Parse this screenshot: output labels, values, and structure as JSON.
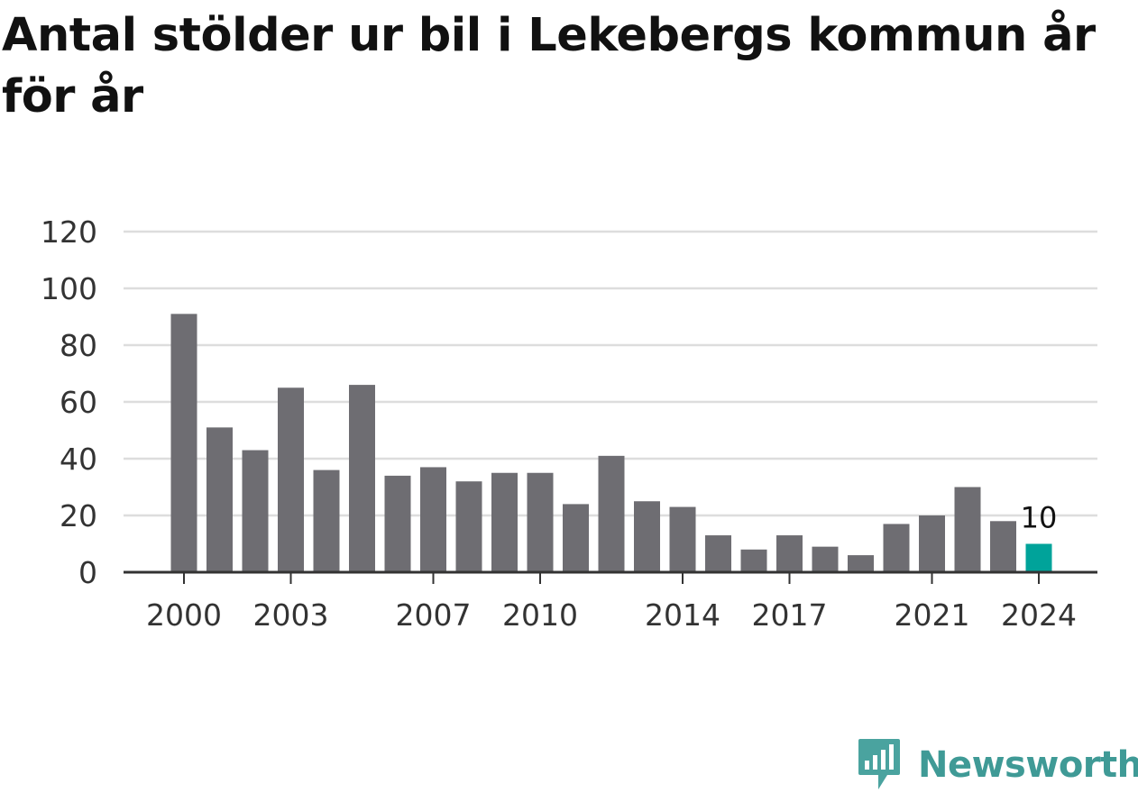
{
  "chart_data": {
    "type": "bar",
    "title": "Antal stölder ur bil i Lekebergs kommun år för år",
    "x": [
      2000,
      2001,
      2002,
      2003,
      2004,
      2005,
      2006,
      2007,
      2008,
      2009,
      2010,
      2011,
      2012,
      2013,
      2014,
      2015,
      2016,
      2017,
      2018,
      2019,
      2020,
      2021,
      2022,
      2023,
      2024
    ],
    "values": [
      91,
      51,
      43,
      65,
      36,
      66,
      34,
      37,
      32,
      35,
      35,
      24,
      41,
      25,
      23,
      13,
      8,
      13,
      9,
      6,
      17,
      20,
      30,
      18,
      10
    ],
    "x_tick_labels": [
      "2000",
      "2003",
      "2007",
      "2010",
      "2014",
      "2017",
      "2021",
      "2024"
    ],
    "y_ticks": [
      0,
      20,
      40,
      60,
      80,
      100,
      120
    ],
    "ylim": [
      0,
      120
    ],
    "highlight": {
      "x": 2024,
      "value": 10,
      "label": "10"
    },
    "grid": "horizontal",
    "bar_color": "#6e6d72",
    "highlight_color": "#00a39a"
  },
  "brand": {
    "name": "Newsworthy",
    "icon": "newsworthy-logo-icon",
    "color": "#3f9a96"
  }
}
